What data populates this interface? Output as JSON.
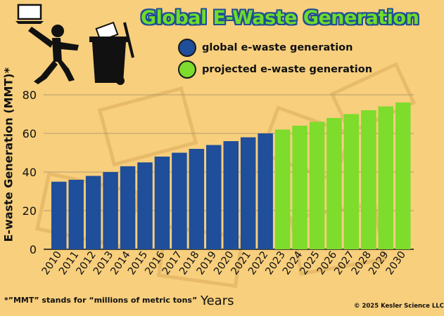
{
  "title": "Global E-Waste Generation",
  "legend": {
    "global_label": "global e-waste generation",
    "projected_label": "projected e-waste generation"
  },
  "footnote": "*”MMT” stands for “millions of metric tons”",
  "copyright": "© 2025 Kesler Science LLC",
  "icons": [
    "laptop-icon",
    "person-throwing-icon",
    "trash-bin-icon"
  ],
  "colors": {
    "background": "#f7cf7d",
    "global": "#1f4e9a",
    "projected": "#7ddc2c",
    "title_fill": "#6fdc2a",
    "title_outline": "#1f4d96"
  },
  "chart_data": {
    "type": "bar",
    "title": "Global E-Waste Generation",
    "xlabel": "Years",
    "ylabel": "E-waste Generation (MMT)*",
    "ylim": [
      0,
      80
    ],
    "yticks": [
      0,
      20,
      40,
      60,
      80
    ],
    "grid": true,
    "legend_position": "top",
    "categories": [
      "2010",
      "2011",
      "2012",
      "2013",
      "2014",
      "2015",
      "2016",
      "2017",
      "2018",
      "2019",
      "2020",
      "2021",
      "2022",
      "2023",
      "2024",
      "2025",
      "2026",
      "2027",
      "2028",
      "2029",
      "2030"
    ],
    "series": [
      {
        "name": "global e-waste generation",
        "color": "#1f4e9a",
        "values": [
          35,
          36,
          38,
          40,
          43,
          45,
          48,
          50,
          52,
          54,
          56,
          58,
          60,
          null,
          null,
          null,
          null,
          null,
          null,
          null,
          null
        ]
      },
      {
        "name": "projected e-waste generation",
        "color": "#7ddc2c",
        "values": [
          null,
          null,
          null,
          null,
          null,
          null,
          null,
          null,
          null,
          null,
          null,
          null,
          null,
          62,
          64,
          66,
          68,
          70,
          72,
          74,
          76
        ]
      }
    ]
  }
}
